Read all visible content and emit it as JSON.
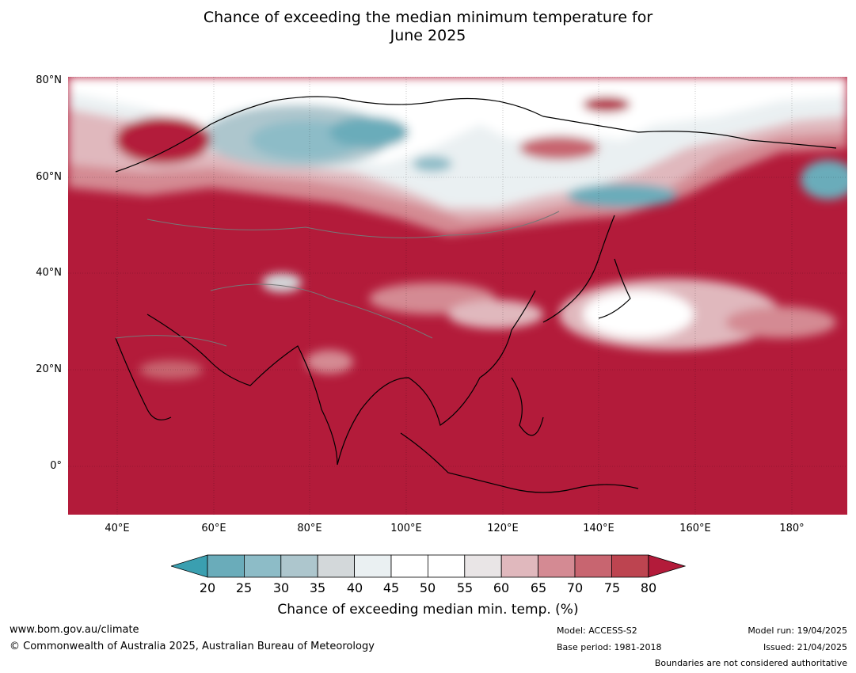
{
  "title": {
    "line1": "Chance of exceeding the median minimum temperature for",
    "line2": "June 2025"
  },
  "map": {
    "lat_labels": [
      "80°N",
      "60°N",
      "40°N",
      "20°N",
      "0°"
    ],
    "lon_labels": [
      "40°E",
      "60°E",
      "80°E",
      "100°E",
      "120°E",
      "140°E",
      "160°E",
      "180°"
    ],
    "lat_range": [
      -10,
      80
    ],
    "lon_range": [
      30,
      191
    ],
    "dominant_color": "#b31b3a"
  },
  "colorbar": {
    "ticks": [
      "20",
      "25",
      "30",
      "35",
      "40",
      "45",
      "50",
      "55",
      "60",
      "65",
      "70",
      "75",
      "80"
    ],
    "colors": [
      "#3a9fb0",
      "#6aacba",
      "#8dbcc7",
      "#adc6cd",
      "#d3d8da",
      "#eaf0f2",
      "#ffffff",
      "#ffffff",
      "#e9e5e6",
      "#e0b8bd",
      "#d48a93",
      "#c86570",
      "#bd4450",
      "#b31b3a"
    ],
    "label": "Chance of exceeding median min. temp. (%)"
  },
  "footer": {
    "website": "www.bom.gov.au/climate",
    "copyright": "© Commonwealth of Australia 2025, Australian Bureau of Meteorology",
    "model": "Model: ACCESS-S2",
    "base_period": "Base period: 1981-2018",
    "model_run": "Model run: 19/04/2025",
    "issued": "Issued: 21/04/2025",
    "disclaimer": "Boundaries are not considered authoritative"
  }
}
